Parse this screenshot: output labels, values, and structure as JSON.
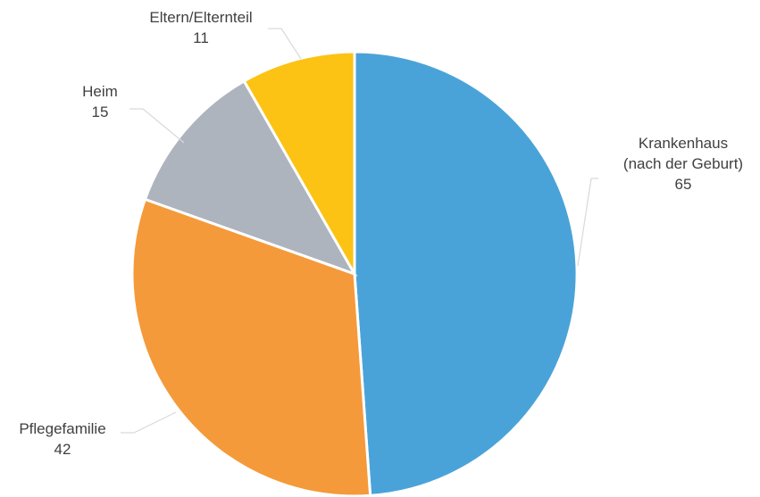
{
  "chart_data": {
    "type": "pie",
    "title": "",
    "categories": [
      "Krankenhaus (nach der Geburt)",
      "Pflegefamilie",
      "Heim",
      "Eltern/Elternteil"
    ],
    "label_lines": [
      [
        "Krankenhaus",
        "(nach der Geburt)"
      ],
      [
        "Pflegefamilie"
      ],
      [
        "Heim"
      ],
      [
        "Eltern/Elternteil"
      ]
    ],
    "values": [
      65,
      42,
      15,
      11
    ],
    "value_labels": [
      "65",
      "42",
      "15",
      "11"
    ],
    "colors": [
      "#4aa3d8",
      "#f49a3a",
      "#adb4be",
      "#fcc314"
    ],
    "start_angle": "12 o'clock",
    "direction": "clockwise",
    "legend": "none"
  }
}
